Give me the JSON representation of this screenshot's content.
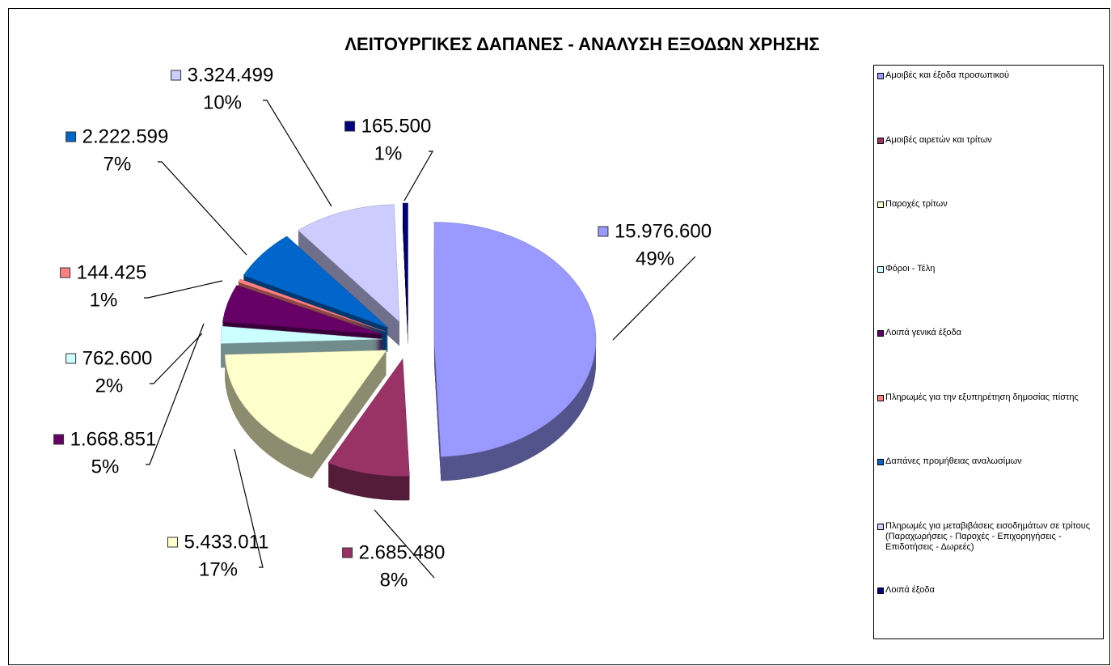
{
  "chart_data": {
    "type": "pie",
    "title": "ΛΕΙΤΟΥΡΓΙΚΕΣ ΔΑΠΑΝΕΣ - ΑΝΑΛΥΣΗ ΕΞΟΔΩΝ ΧΡΗΣΗΣ",
    "categories": [
      "Αμοιβές και έξοδα προσωπικού",
      "Αμοιβές αιρετών και τρίτων",
      "Παροχές τρίτων",
      "Φόροι - Τέλη",
      "Λοιπά γενικά έξοδα",
      "Πληρωμές για την εξυπηρέτηση δημοσίας πίστης",
      "Δαπάνες προμήθειας αναλωσίμων",
      "Πληρωμές για μεταβιβάσεις εισοδημάτων σε τρίτους (Παραχωρήσεις - Παροχές - Επιχορηγήσεις - Επιδοτήσεις - Δωρεές)",
      "Λοιπά έξοδα"
    ],
    "values": [
      15976600,
      2685480,
      5433011,
      762600,
      1668851,
      144425,
      2222599,
      3324499,
      165500
    ],
    "value_labels": [
      "15.976.600",
      "2.685.480",
      "5.433.011",
      "762.600",
      "1.668.851",
      "144.425",
      "2.222.599",
      "3.324.499",
      "165.500"
    ],
    "percent_labels": [
      "49%",
      "8%",
      "17%",
      "2%",
      "5%",
      "1%",
      "7%",
      "10%",
      "1%"
    ],
    "colors": [
      "#9999ff",
      "#993366",
      "#ffffcc",
      "#ccffff",
      "#660066",
      "#ff8080",
      "#0066cc",
      "#ccccff",
      "#000080"
    ],
    "legend": "right"
  }
}
